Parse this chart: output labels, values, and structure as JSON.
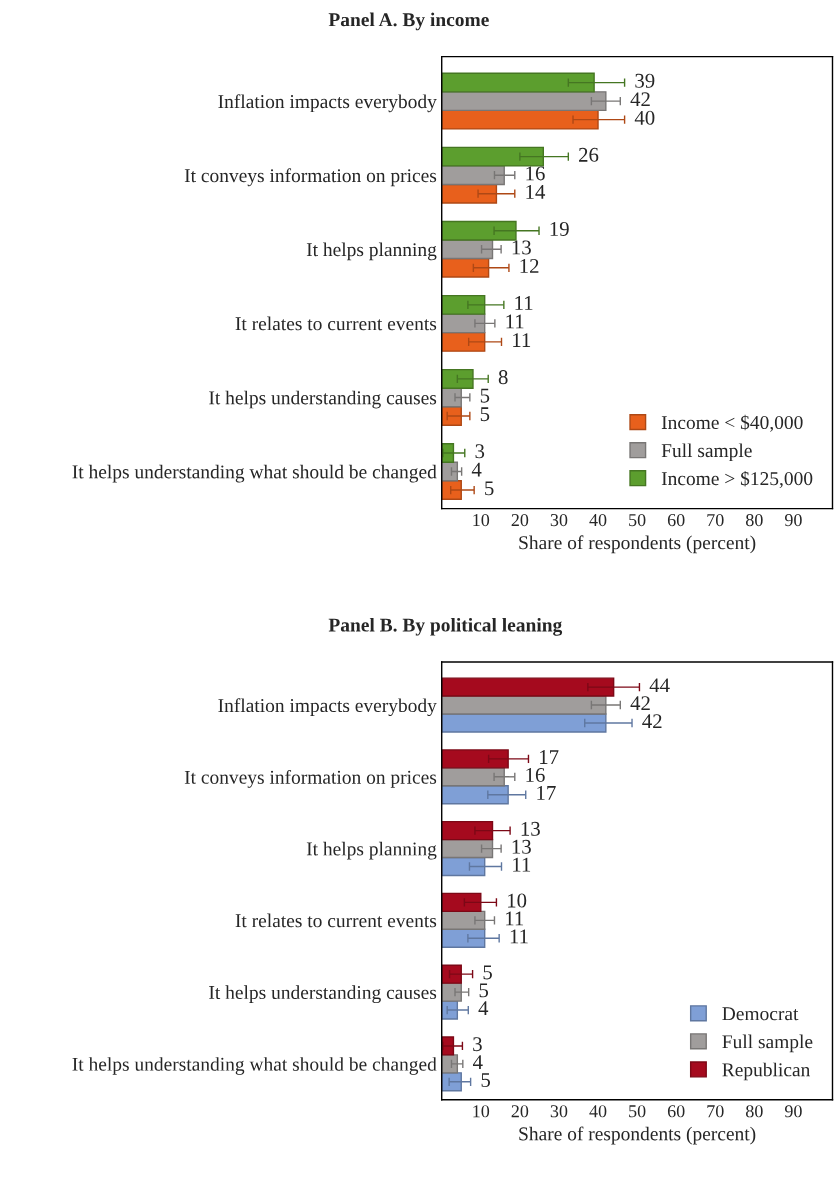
{
  "chart_data": [
    {
      "type": "bar",
      "orientation": "horizontal",
      "title": "Panel A. By income",
      "xlabel": "Share of respondents (percent)",
      "categories": [
        "Inflation impacts everybody",
        "It conveys information on prices",
        "It helps planning",
        "It relates to current events",
        "It helps understanding causes",
        "It helps understanding what should be changed"
      ],
      "series": [
        {
          "name": "Income < $40,000",
          "color": "#e8601c",
          "values": [
            40,
            14,
            12,
            11,
            5,
            5
          ],
          "errors": [
            [
              33.6,
              46.8
            ],
            [
              9.3,
              18.7
            ],
            [
              8.1,
              17.2
            ],
            [
              6.9,
              15.3
            ],
            [
              1.4,
              7.2
            ],
            [
              2.3,
              8.3
            ]
          ]
        },
        {
          "name": "Full sample",
          "color": "#a09d9c",
          "values": [
            42,
            16,
            13,
            11,
            5,
            4
          ],
          "errors": [
            [
              38.3,
              45.7
            ],
            [
              13.5,
              18.7
            ],
            [
              10.2,
              15.2
            ],
            [
              8.5,
              13.6
            ],
            [
              3.4,
              7.2
            ],
            [
              2.5,
              5.1
            ]
          ]
        },
        {
          "name": "Income > $125,000",
          "color": "#5c9e2e",
          "values": [
            39,
            26,
            19,
            11,
            8,
            3
          ],
          "errors": [
            [
              32.4,
              46.8
            ],
            [
              20,
              32.4
            ],
            [
              13.4,
              24.9
            ],
            [
              6.7,
              15.9
            ],
            [
              4,
              11.9
            ],
            [
              0.3,
              5.9
            ]
          ]
        }
      ],
      "xlim": [
        0,
        100
      ],
      "xticks": [
        10,
        20,
        30,
        40,
        50,
        60,
        70,
        80,
        90
      ],
      "data_labels": true,
      "legend": "bottom right",
      "grid": false
    },
    {
      "type": "bar",
      "orientation": "horizontal",
      "title": "Panel B. By political leaning",
      "xlabel": "Share of respondents (percent)",
      "categories": [
        "Inflation impacts everybody",
        "It conveys information on prices",
        "It helps planning",
        "It relates to current events",
        "It helps understanding causes",
        "It helps understanding what should be changed"
      ],
      "series": [
        {
          "name": "Democrat",
          "color": "#7f9fd6",
          "values": [
            42,
            17,
            11,
            11,
            4,
            5
          ],
          "errors": [
            [
              36.6,
              48.7
            ],
            [
              11.8,
              21.5
            ],
            [
              7.1,
              15.3
            ],
            [
              6.7,
              14.7
            ],
            [
              1.4,
              6.8
            ],
            [
              1.9,
              7.4
            ]
          ]
        },
        {
          "name": "Full sample",
          "color": "#a09d9c",
          "values": [
            42,
            16,
            13,
            11,
            5,
            4
          ],
          "errors": [
            [
              38.3,
              45.7
            ],
            [
              13.4,
              18.7
            ],
            [
              10.2,
              15.2
            ],
            [
              8.5,
              13.5
            ],
            [
              3.4,
              6.9
            ],
            [
              2.5,
              5.4
            ]
          ]
        },
        {
          "name": "Republican",
          "color": "#a50a1e",
          "values": [
            44,
            17,
            13,
            10,
            5,
            3
          ],
          "errors": [
            [
              37.4,
              50.6
            ],
            [
              12,
              22.2
            ],
            [
              8.5,
              17.5
            ],
            [
              5.8,
              14
            ],
            [
              2,
              7.9
            ],
            [
              0.3,
              5.3
            ]
          ]
        }
      ],
      "xlim": [
        0,
        100
      ],
      "xticks": [
        10,
        20,
        30,
        40,
        50,
        60,
        70,
        80,
        90
      ],
      "data_labels": true,
      "legend": "bottom right",
      "grid": false
    }
  ]
}
